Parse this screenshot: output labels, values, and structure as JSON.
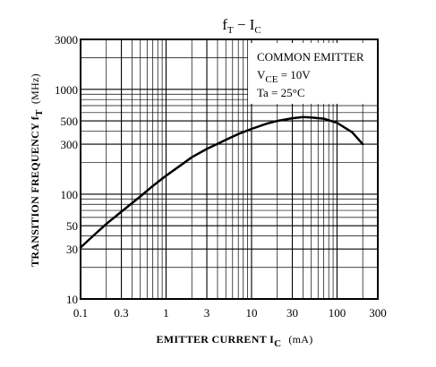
{
  "chart_data": {
    "type": "line",
    "title": {
      "main": "f",
      "sub1": "T",
      "sep": " − I",
      "sub2": "C"
    },
    "xlabel": {
      "text": "EMITTER CURRENT I",
      "sub": "C",
      "unit": "(mA)"
    },
    "ylabel": {
      "text": "TRANSITION FREQUENCY f",
      "sub": "T",
      "unit": "(MHz)"
    },
    "x_scale": "log",
    "y_scale": "log",
    "xlim": [
      0.1,
      300
    ],
    "ylim": [
      10,
      3000
    ],
    "x_ticks": [
      {
        "value": 0.1,
        "label": "0.1"
      },
      {
        "value": 0.3,
        "label": "0.3"
      },
      {
        "value": 1,
        "label": "1"
      },
      {
        "value": 3,
        "label": "3"
      },
      {
        "value": 10,
        "label": "10"
      },
      {
        "value": 30,
        "label": "30"
      },
      {
        "value": 100,
        "label": "100"
      },
      {
        "value": 300,
        "label": "300"
      }
    ],
    "y_ticks": [
      {
        "value": 10,
        "label": "10"
      },
      {
        "value": 30,
        "label": "30"
      },
      {
        "value": 50,
        "label": "50"
      },
      {
        "value": 100,
        "label": "100"
      },
      {
        "value": 300,
        "label": "300"
      },
      {
        "value": 500,
        "label": "500"
      },
      {
        "value": 1000,
        "label": "1000"
      },
      {
        "value": 3000,
        "label": "3000"
      }
    ],
    "grid": true,
    "conditions": {
      "line1": "COMMON EMITTER",
      "line2_main": "V",
      "line2_sub": "CE",
      "line2_rest": " = 10V",
      "line3": "Ta = 25°C",
      "placement": "top-right"
    },
    "series": [
      {
        "x": [
          0.1,
          0.15,
          0.2,
          0.3,
          0.5,
          0.7,
          1,
          1.5,
          2,
          3,
          5,
          7,
          10,
          15,
          20,
          30,
          40,
          50,
          70,
          100,
          150,
          200
        ],
        "y": [
          31,
          42,
          52,
          68,
          95,
          120,
          150,
          190,
          225,
          270,
          330,
          375,
          420,
          470,
          500,
          530,
          545,
          540,
          525,
          480,
          390,
          300
        ]
      }
    ]
  }
}
